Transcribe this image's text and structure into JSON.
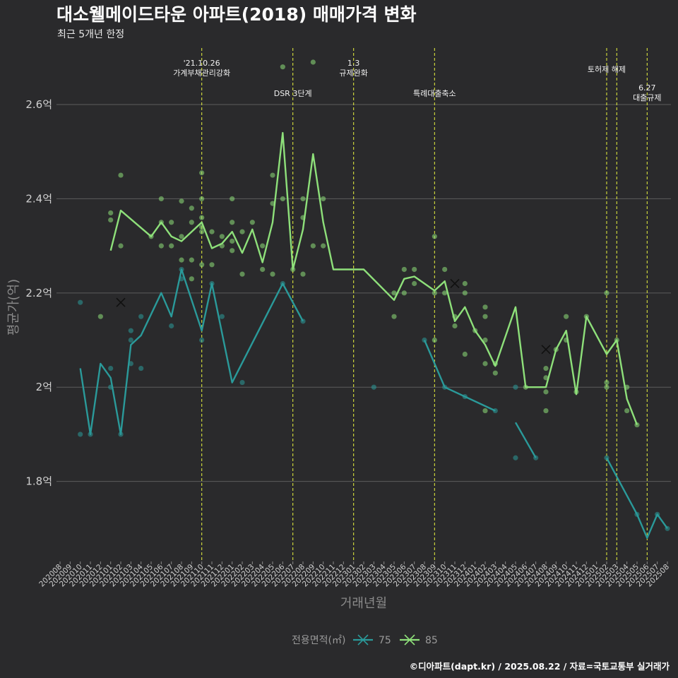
{
  "chart_data": {
    "type": "line",
    "title": "대소웰메이드타운 아파트(2018) 매매가격 변화",
    "subtitle": "최근 5개년 한정",
    "xlabel": "거래년월",
    "ylabel": "평균가(억)",
    "caption": "©디아파트(dapt.kr) / 2025.08.22 / 자료=국토교통부 실거래가",
    "x": [
      "202008",
      "202009",
      "202010",
      "202011",
      "202012",
      "202101",
      "202102",
      "202103",
      "202104",
      "202105",
      "202106",
      "202107",
      "202108",
      "202109",
      "202110",
      "202111",
      "202112",
      "202201",
      "202202",
      "202203",
      "202204",
      "202205",
      "202206",
      "202207",
      "202208",
      "202209",
      "202210",
      "202211",
      "202212",
      "202301",
      "202302",
      "202303",
      "202304",
      "202305",
      "202306",
      "202307",
      "202308",
      "202309",
      "202310",
      "202311",
      "202312",
      "202401",
      "202402",
      "202403",
      "202404",
      "202405",
      "202406",
      "202407",
      "202408",
      "202409",
      "202410",
      "202411",
      "202412",
      "202501",
      "202502",
      "202503",
      "202504",
      "202505",
      "202506",
      "202507",
      "202508"
    ],
    "ylim": [
      1.63,
      2.72
    ],
    "yticks": [
      1.8,
      2.0,
      2.2,
      2.4,
      2.6
    ],
    "ytick_labels": [
      "1.8억",
      "2억",
      "2.2억",
      "2.4억",
      "2.6억"
    ],
    "grid": true,
    "legend": {
      "title": "전용면적(㎡)",
      "position": "bottom",
      "items": [
        "75",
        "85"
      ]
    },
    "series": [
      {
        "name": "75",
        "color": "#2a9a9a",
        "line": [
          [
            [
              "202010",
              2.04
            ],
            [
              "202011",
              1.9
            ],
            [
              "202012",
              2.05
            ],
            [
              "202101",
              2.02
            ],
            [
              "202102",
              1.9
            ],
            [
              "202103",
              2.09
            ],
            [
              "202104",
              2.11
            ],
            [
              "202106",
              2.2
            ],
            [
              "202107",
              2.15
            ],
            [
              "202108",
              2.25
            ],
            [
              "202110",
              2.12
            ],
            [
              "202111",
              2.22
            ],
            [
              "202201",
              2.01
            ],
            [
              "202206",
              2.22
            ],
            [
              "202208",
              2.14
            ]
          ],
          [
            [
              "202308",
              2.1
            ],
            [
              "202310",
              2.0
            ],
            [
              "202312",
              1.98
            ],
            [
              "202403",
              1.95
            ]
          ],
          [
            [
              "202405",
              1.925
            ],
            [
              "202407",
              1.85
            ]
          ],
          [
            [
              "202502",
              1.85
            ],
            [
              "202505",
              1.73
            ],
            [
              "202506",
              1.68
            ],
            [
              "202507",
              1.73
            ],
            [
              "202508",
              1.7
            ]
          ]
        ],
        "points": [
          [
            "202010",
            2.18
          ],
          [
            "202010",
            1.9
          ],
          [
            "202011",
            1.9
          ],
          [
            "202101",
            2.04
          ],
          [
            "202101",
            2.0
          ],
          [
            "202102",
            1.9
          ],
          [
            "202103",
            2.12
          ],
          [
            "202103",
            2.1
          ],
          [
            "202103",
            2.05
          ],
          [
            "202104",
            2.15
          ],
          [
            "202104",
            2.04
          ],
          [
            "202107",
            2.13
          ],
          [
            "202108",
            2.25
          ],
          [
            "202108",
            2.23
          ],
          [
            "202110",
            2.1
          ],
          [
            "202111",
            2.22
          ],
          [
            "202112",
            2.15
          ],
          [
            "202202",
            2.01
          ],
          [
            "202206",
            2.22
          ],
          [
            "202208",
            2.14
          ],
          [
            "202303",
            2.0
          ],
          [
            "202308",
            2.1
          ],
          [
            "202310",
            2.0
          ],
          [
            "202312",
            1.98
          ],
          [
            "202403",
            1.95
          ],
          [
            "202405",
            1.85
          ],
          [
            "202405",
            2.0
          ],
          [
            "202407",
            1.85
          ],
          [
            "202502",
            1.85
          ],
          [
            "202505",
            1.73
          ],
          [
            "202507",
            1.73
          ],
          [
            "202508",
            1.7
          ]
        ],
        "crosses": [
          [
            "202102",
            2.18
          ]
        ]
      },
      {
        "name": "85",
        "color": "#8ee07a",
        "line": [
          [
            [
              "202101",
              2.29
            ],
            [
              "202102",
              2.375
            ],
            [
              "202105",
              2.32
            ],
            [
              "202106",
              2.35
            ],
            [
              "202107",
              2.32
            ],
            [
              "202108",
              2.31
            ],
            [
              "202110",
              2.35
            ],
            [
              "202111",
              2.295
            ],
            [
              "202112",
              2.305
            ],
            [
              "202201",
              2.33
            ],
            [
              "202202",
              2.285
            ],
            [
              "202203",
              2.335
            ],
            [
              "202204",
              2.265
            ],
            [
              "202205",
              2.35
            ],
            [
              "202206",
              2.54
            ],
            [
              "202207",
              2.25
            ],
            [
              "202208",
              2.335
            ],
            [
              "202209",
              2.495
            ],
            [
              "202210",
              2.35
            ],
            [
              "202211",
              2.25
            ],
            [
              "202302",
              2.25
            ],
            [
              "202305",
              2.185
            ],
            [
              "202306",
              2.23
            ],
            [
              "202307",
              2.235
            ],
            [
              "202309",
              2.205
            ],
            [
              "202310",
              2.225
            ],
            [
              "202311",
              2.14
            ],
            [
              "202312",
              2.17
            ],
            [
              "202401",
              2.12
            ],
            [
              "202402",
              2.09
            ],
            [
              "202403",
              2.045
            ],
            [
              "202405",
              2.17
            ],
            [
              "202406",
              2.0
            ],
            [
              "202408",
              2.0
            ],
            [
              "202409",
              2.08
            ],
            [
              "202410",
              2.12
            ],
            [
              "202411",
              1.985
            ],
            [
              "202412",
              2.15
            ],
            [
              "202502",
              2.07
            ],
            [
              "202503",
              2.1
            ],
            [
              "202504",
              1.975
            ],
            [
              "202505",
              1.92
            ]
          ]
        ],
        "points": [
          [
            "202012",
            2.15
          ],
          [
            "202101",
            2.37
          ],
          [
            "202101",
            2.355
          ],
          [
            "202102",
            2.45
          ],
          [
            "202102",
            2.3
          ],
          [
            "202105",
            2.32
          ],
          [
            "202106",
            2.4
          ],
          [
            "202106",
            2.35
          ],
          [
            "202106",
            2.3
          ],
          [
            "202107",
            2.35
          ],
          [
            "202107",
            2.3
          ],
          [
            "202108",
            2.395
          ],
          [
            "202108",
            2.32
          ],
          [
            "202108",
            2.27
          ],
          [
            "202109",
            2.38
          ],
          [
            "202109",
            2.35
          ],
          [
            "202109",
            2.27
          ],
          [
            "202109",
            2.23
          ],
          [
            "202110",
            2.455
          ],
          [
            "202110",
            2.4
          ],
          [
            "202110",
            2.36
          ],
          [
            "202110",
            2.34
          ],
          [
            "202110",
            2.33
          ],
          [
            "202110",
            2.26
          ],
          [
            "202111",
            2.33
          ],
          [
            "202111",
            2.26
          ],
          [
            "202112",
            2.32
          ],
          [
            "202112",
            2.3
          ],
          [
            "202201",
            2.4
          ],
          [
            "202201",
            2.35
          ],
          [
            "202201",
            2.31
          ],
          [
            "202201",
            2.29
          ],
          [
            "202202",
            2.33
          ],
          [
            "202202",
            2.24
          ],
          [
            "202203",
            2.35
          ],
          [
            "202204",
            2.3
          ],
          [
            "202204",
            2.25
          ],
          [
            "202205",
            2.45
          ],
          [
            "202205",
            2.39
          ],
          [
            "202205",
            2.24
          ],
          [
            "202206",
            2.68
          ],
          [
            "202206",
            2.4
          ],
          [
            "202207",
            2.25
          ],
          [
            "202208",
            2.4
          ],
          [
            "202208",
            2.36
          ],
          [
            "202208",
            2.24
          ],
          [
            "202209",
            2.69
          ],
          [
            "202209",
            2.3
          ],
          [
            "202210",
            2.4
          ],
          [
            "202210",
            2.3
          ],
          [
            "202305",
            2.2
          ],
          [
            "202305",
            2.15
          ],
          [
            "202306",
            2.25
          ],
          [
            "202306",
            2.2
          ],
          [
            "202307",
            2.25
          ],
          [
            "202307",
            2.22
          ],
          [
            "202309",
            2.32
          ],
          [
            "202309",
            2.2
          ],
          [
            "202309",
            2.1
          ],
          [
            "202310",
            2.25
          ],
          [
            "202310",
            2.2
          ],
          [
            "202311",
            2.15
          ],
          [
            "202311",
            2.13
          ],
          [
            "202312",
            2.22
          ],
          [
            "202312",
            2.2
          ],
          [
            "202312",
            2.07
          ],
          [
            "202401",
            2.12
          ],
          [
            "202402",
            2.17
          ],
          [
            "202402",
            2.15
          ],
          [
            "202402",
            2.1
          ],
          [
            "202402",
            2.05
          ],
          [
            "202402",
            1.95
          ],
          [
            "202403",
            2.05
          ],
          [
            "202403",
            2.03
          ],
          [
            "202406",
            2.0
          ],
          [
            "202408",
            2.04
          ],
          [
            "202408",
            2.02
          ],
          [
            "202408",
            1.99
          ],
          [
            "202408",
            1.95
          ],
          [
            "202409",
            2.08
          ],
          [
            "202410",
            2.15
          ],
          [
            "202410",
            2.1
          ],
          [
            "202411",
            1.99
          ],
          [
            "202412",
            2.15
          ],
          [
            "202502",
            2.2
          ],
          [
            "202502",
            2.01
          ],
          [
            "202502",
            2.0
          ],
          [
            "202503",
            2.1
          ],
          [
            "202504",
            2.0
          ],
          [
            "202504",
            1.95
          ],
          [
            "202505",
            1.92
          ]
        ],
        "crosses": [
          [
            "202311",
            2.22
          ],
          [
            "202408",
            2.08
          ]
        ]
      }
    ],
    "annotations": [
      {
        "x": "202110",
        "lines": [
          "'21.10.26",
          "가계부채관리강화"
        ],
        "level": 0
      },
      {
        "x": "202207",
        "lines": [
          "DSR 3단계"
        ],
        "level": 1
      },
      {
        "x": "202301",
        "lines": [
          "1.3",
          "규제완화"
        ],
        "level": 0
      },
      {
        "x": "202309",
        "lines": [
          "특례대출축소"
        ],
        "level": 1
      },
      {
        "x": "202502",
        "lines": [
          "토허제 해제"
        ],
        "level": 2
      },
      {
        "x": "202503",
        "lines": [],
        "level": 2
      },
      {
        "x": "202506",
        "lines": [
          "6.27",
          "대출규제"
        ],
        "level": 3
      }
    ]
  }
}
